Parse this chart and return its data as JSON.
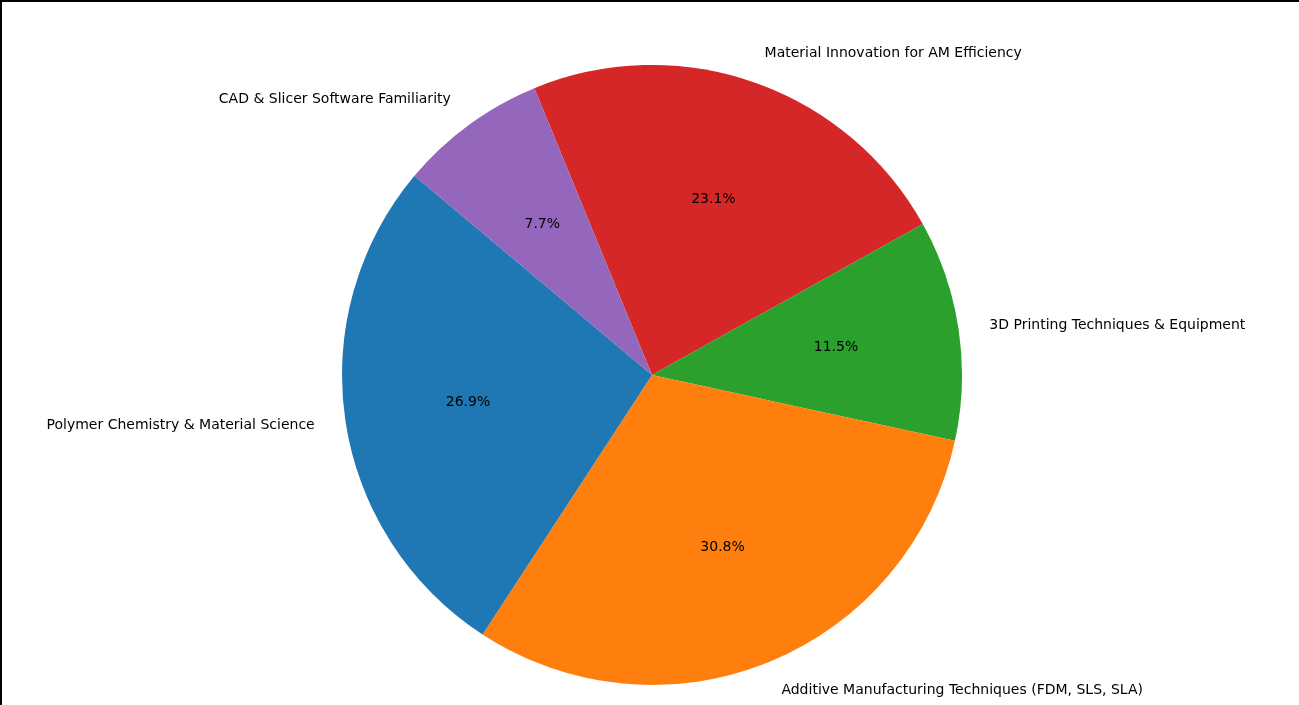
{
  "chart_data": {
    "type": "pie",
    "categories": [
      "Material Innovation for AM Efficiency",
      "3D Printing Techniques & Equipment",
      "Additive Manufacturing Techniques (FDM, SLS, SLA)",
      "Polymer Chemistry & Material Science",
      "CAD & Slicer Software Familiarity"
    ],
    "values": [
      23.1,
      11.5,
      30.8,
      26.9,
      7.7
    ],
    "colors": [
      "#d62728",
      "#2ca02c",
      "#ff7f0e",
      "#1f77b4",
      "#9467bd"
    ],
    "value_labels": [
      "23.1%",
      "11.5%",
      "30.8%",
      "26.9%",
      "7.7%"
    ]
  }
}
